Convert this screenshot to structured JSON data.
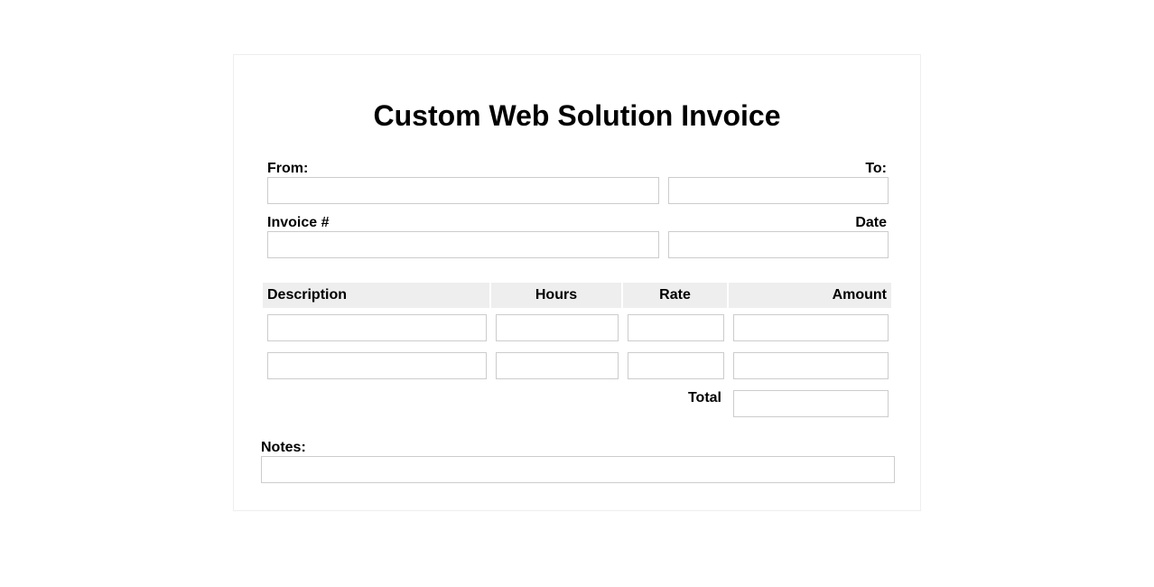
{
  "title": "Custom Web Solution Invoice",
  "fields": {
    "from_label": "From:",
    "to_label": "To:",
    "invoice_label": "Invoice #",
    "date_label": "Date"
  },
  "table": {
    "headers": [
      "Description",
      "Hours",
      "Rate",
      "Amount"
    ],
    "rows": [
      {
        "description": "",
        "hours": "",
        "rate": "",
        "amount": ""
      },
      {
        "description": "",
        "hours": "",
        "rate": "",
        "amount": ""
      }
    ],
    "total_label": "Total",
    "total_value": ""
  },
  "notes": {
    "label": "Notes:",
    "value": ""
  }
}
